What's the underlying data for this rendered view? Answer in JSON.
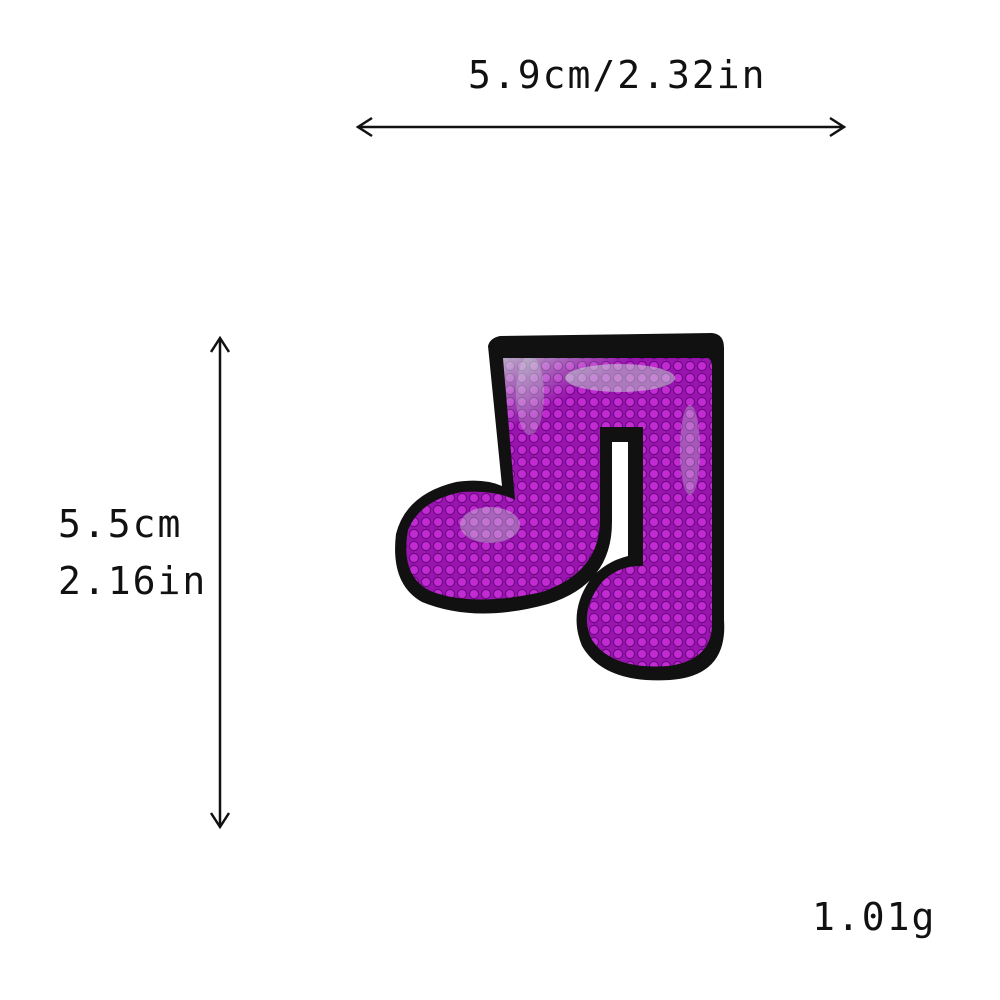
{
  "dimensions": {
    "width_text": "5.9cm/2.32in",
    "height_cm_text": "5.5cm",
    "height_in_text": "2.16in",
    "weight_text": "1.01g"
  },
  "colors": {
    "background": "#ffffff",
    "text": "#111111",
    "patch_border": "#111111",
    "sequin_main": "#b21fc4",
    "sequin_dark": "#7d0a92",
    "sequin_highlight": "#c9f3d4"
  },
  "product": {
    "icon": "music-note-icon"
  }
}
